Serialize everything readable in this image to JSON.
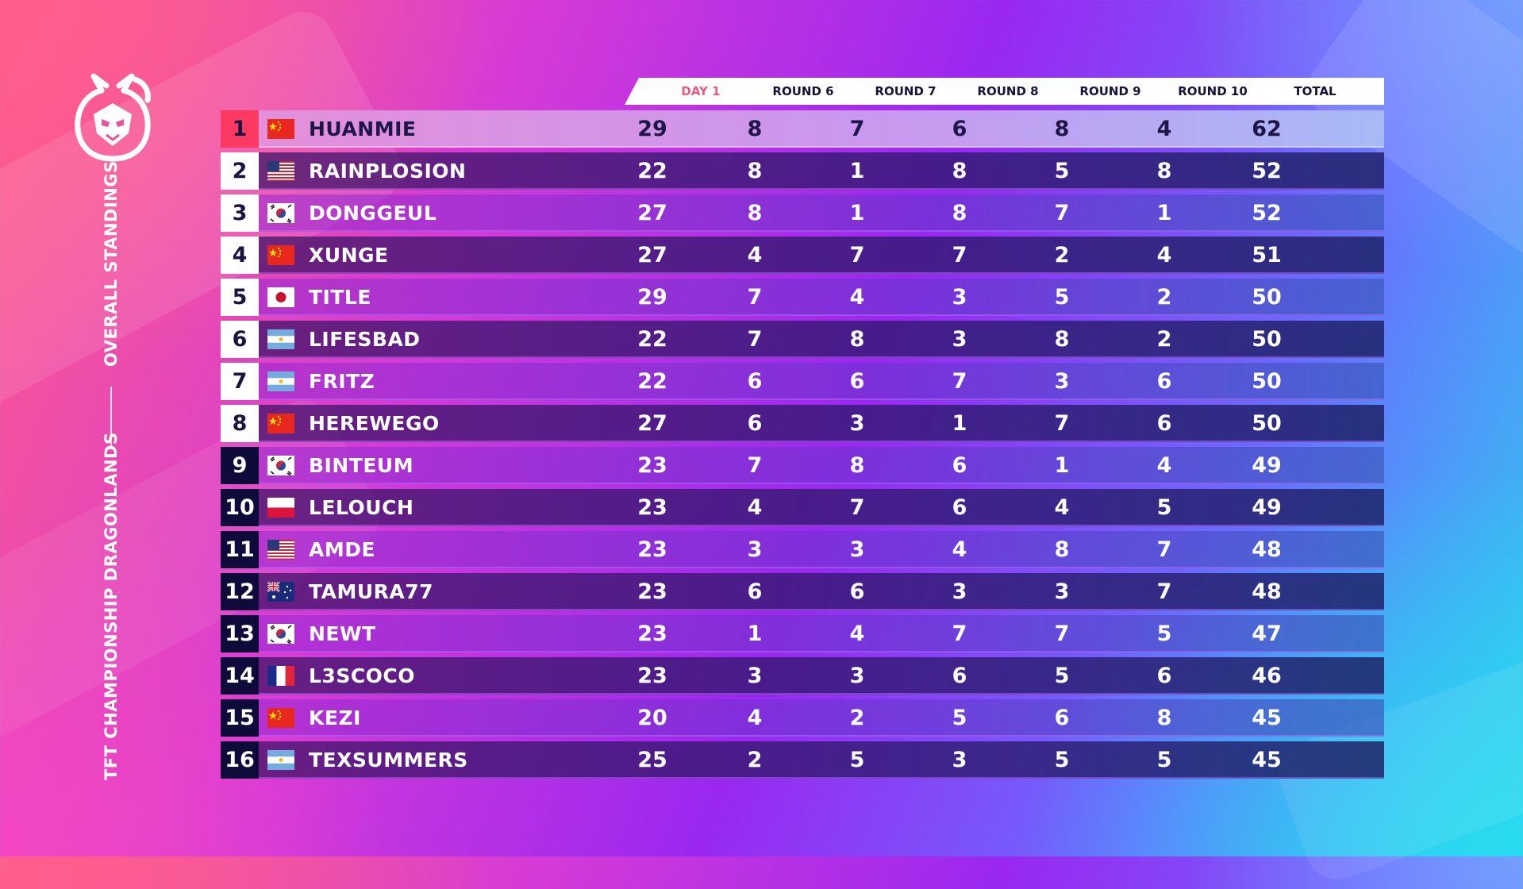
{
  "sidebar": {
    "logo_icon": "dragon-crest-icon",
    "overall_label": "OVERALL STANDINGS",
    "event_label": "TFT CHAMPIONSHIP DRAGONLANDS"
  },
  "table": {
    "columns": [
      "DAY 1",
      "ROUND 6",
      "ROUND 7",
      "ROUND 8",
      "ROUND 9",
      "ROUND 10",
      "TOTAL"
    ],
    "colors": {
      "day_header": "#e85a7e",
      "first_rank": "#ff3a62",
      "dark_rank": "#0e0a3a"
    },
    "rows": [
      {
        "rank": "1",
        "flag": "cn",
        "name": "HUANMIE",
        "scores": [
          "29",
          "8",
          "7",
          "6",
          "8",
          "4",
          "62"
        ]
      },
      {
        "rank": "2",
        "flag": "us",
        "name": "RAINPLOSION",
        "scores": [
          "22",
          "8",
          "1",
          "8",
          "5",
          "8",
          "52"
        ]
      },
      {
        "rank": "3",
        "flag": "kr",
        "name": "DONGGEUL",
        "scores": [
          "27",
          "8",
          "1",
          "8",
          "7",
          "1",
          "52"
        ]
      },
      {
        "rank": "4",
        "flag": "cn",
        "name": "XUNGE",
        "scores": [
          "27",
          "4",
          "7",
          "7",
          "2",
          "4",
          "51"
        ]
      },
      {
        "rank": "5",
        "flag": "jp",
        "name": "TITLE",
        "scores": [
          "29",
          "7",
          "4",
          "3",
          "5",
          "2",
          "50"
        ]
      },
      {
        "rank": "6",
        "flag": "ar",
        "name": "LIFESBAD",
        "scores": [
          "22",
          "7",
          "8",
          "3",
          "8",
          "2",
          "50"
        ]
      },
      {
        "rank": "7",
        "flag": "ar",
        "name": "FRITZ",
        "scores": [
          "22",
          "6",
          "6",
          "7",
          "3",
          "6",
          "50"
        ]
      },
      {
        "rank": "8",
        "flag": "cn",
        "name": "HEREWEGO",
        "scores": [
          "27",
          "6",
          "3",
          "1",
          "7",
          "6",
          "50"
        ]
      },
      {
        "rank": "9",
        "flag": "kr",
        "name": "BINTEUM",
        "scores": [
          "23",
          "7",
          "8",
          "6",
          "1",
          "4",
          "49"
        ]
      },
      {
        "rank": "10",
        "flag": "pl",
        "name": "LELOUCH",
        "scores": [
          "23",
          "4",
          "7",
          "6",
          "4",
          "5",
          "49"
        ]
      },
      {
        "rank": "11",
        "flag": "us",
        "name": "AMDE",
        "scores": [
          "23",
          "3",
          "3",
          "4",
          "8",
          "7",
          "48"
        ]
      },
      {
        "rank": "12",
        "flag": "au",
        "name": "TAMURA77",
        "scores": [
          "23",
          "6",
          "6",
          "3",
          "3",
          "7",
          "48"
        ]
      },
      {
        "rank": "13",
        "flag": "kr",
        "name": "NEWT",
        "scores": [
          "23",
          "1",
          "4",
          "7",
          "7",
          "5",
          "47"
        ]
      },
      {
        "rank": "14",
        "flag": "fr",
        "name": "L3SCOCO",
        "scores": [
          "23",
          "3",
          "3",
          "6",
          "5",
          "6",
          "46"
        ]
      },
      {
        "rank": "15",
        "flag": "cn",
        "name": "KEZI",
        "scores": [
          "20",
          "4",
          "2",
          "5",
          "6",
          "8",
          "45"
        ]
      },
      {
        "rank": "16",
        "flag": "ar",
        "name": "TEXSUMMERS",
        "scores": [
          "25",
          "2",
          "5",
          "3",
          "5",
          "5",
          "45"
        ]
      }
    ]
  }
}
